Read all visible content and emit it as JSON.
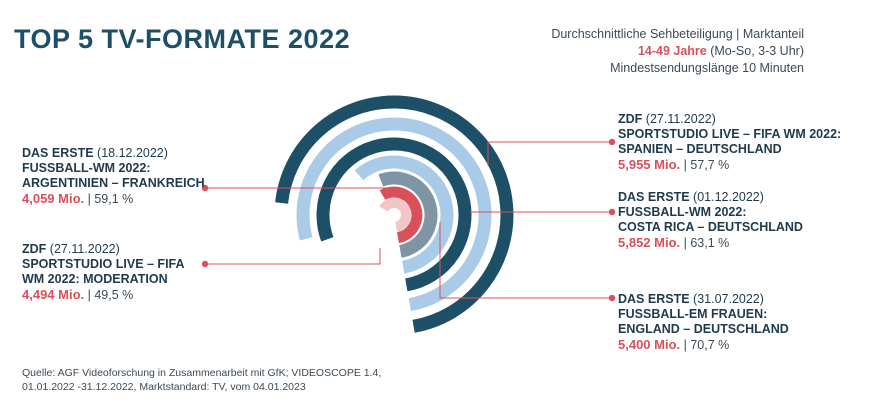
{
  "title": "TOP 5 TV-FORMATE 2022",
  "subtitle": {
    "line1": "Durchschnittliche Sehbeteiligung | Marktanteil",
    "line2_highlight": "14-49 Jahre",
    "line2_rest": " (Mo-So, 3-3 Uhr)",
    "line3": "Mindestsendungslänge 10 Minuten"
  },
  "chart_data": {
    "type": "radial-bar",
    "title": "TOP 5 TV-FORMATE 2022",
    "unit": "Mio.",
    "series": [
      {
        "channel": "DAS ERSTE",
        "date": "(31.07.2022)",
        "show_lines": [
          "FUSSBALL-EM FRAUEN:",
          "ENGLAND – DEUTSCHLAND"
        ],
        "value": 5.4,
        "value_label": "5,400 Mio.",
        "share_label": "| 70,7 %",
        "color": "#1d4f66"
      },
      {
        "channel": "DAS ERSTE",
        "date": "(01.12.2022)",
        "show_lines": [
          "FUSSBALL-WM 2022:",
          "COSTA RICA – DEUTSCHLAND"
        ],
        "value": 5.852,
        "value_label": "5,852 Mio.",
        "share_label": "| 63,1 %",
        "color": "#a9cbe8"
      },
      {
        "channel": "ZDF",
        "date": "(27.11.2022)",
        "show_lines": [
          "SPORTSTUDIO LIVE – FIFA WM 2022:",
          "SPANIEN – DEUTSCHLAND"
        ],
        "value": 5.955,
        "value_label": "5,955 Mio.",
        "share_label": "| 57,7 %",
        "color": "#1d4f66"
      },
      {
        "channel": "ZDF",
        "date": "(27.11.2022)",
        "show_lines": [
          "SPORTSTUDIO LIVE – FIFA",
          "WM 2022: MODERATION"
        ],
        "value": 4.494,
        "value_label": "4,494 Mio.",
        "share_label": "| 49,5 %",
        "color": "#a9cbe8"
      },
      {
        "channel": "DAS ERSTE",
        "date": "(18.12.2022)",
        "show_lines": [
          "FUSSBALL-WM 2022:",
          "ARGENTINIEN – FRANKREICH"
        ],
        "value": 4.059,
        "value_label": "4,059 Mio.",
        "share_label": "| 59,1 %",
        "color": "#7f95a6"
      }
    ]
  },
  "source": {
    "line1": "Quelle: AGF Videoforschung in Zusammenarbeit mit GfK; VIDEOSCOPE 1.4,",
    "line2": "01.01.2022 -31.12.2022, Marktstandard: TV, vom 04.01.2023"
  },
  "colors": {
    "accent_red": "#d9505a",
    "light_red": "#f2c6c6",
    "dark_blue": "#1d4f66"
  }
}
